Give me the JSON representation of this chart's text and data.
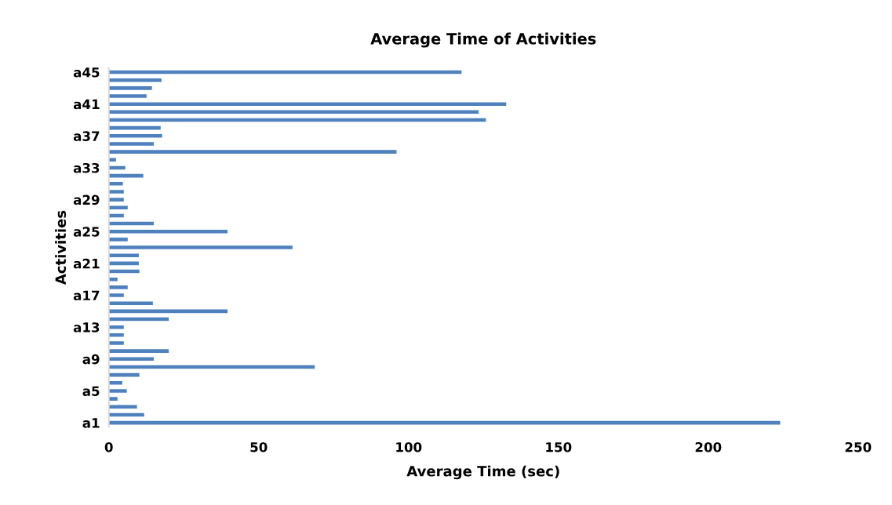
{
  "chart_data": {
    "type": "bar",
    "orientation": "horizontal",
    "title": "Average Time of Activities",
    "xlabel": "Average Time (sec)",
    "ylabel": "Activities",
    "categories": [
      "a45",
      null,
      null,
      null,
      "a41",
      null,
      null,
      null,
      "a37",
      null,
      null,
      null,
      "a33",
      null,
      null,
      null,
      "a29",
      null,
      null,
      null,
      "a25",
      null,
      null,
      null,
      "a21",
      null,
      null,
      null,
      "a17",
      null,
      null,
      null,
      "a13",
      null,
      null,
      null,
      "a9",
      null,
      null,
      null,
      "a5",
      null,
      null,
      null,
      "a1"
    ],
    "values": [
      117.7,
      17.6,
      14.4,
      12.6,
      132.6,
      123.4,
      125.8,
      17.3,
      17.8,
      15,
      96,
      2.4,
      5.5,
      11.5,
      4.7,
      5,
      5,
      6.3,
      5,
      15,
      39.6,
      6.3,
      61.3,
      10,
      10,
      10.2,
      2.9,
      6.3,
      5,
      14.7,
      39.6,
      20,
      5,
      5,
      5,
      20,
      15,
      68.7,
      10.2,
      4.5,
      6,
      2.9,
      9.4,
      11.8,
      224
    ],
    "color": "#4f81bd",
    "xlim": [
      0,
      250
    ],
    "xticks": [
      0,
      50,
      100,
      150,
      200,
      250
    ],
    "grid": false,
    "legend": false
  }
}
